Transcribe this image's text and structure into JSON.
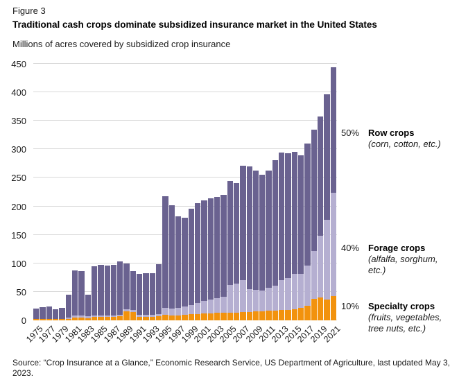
{
  "figure_label": "Figure 3",
  "title": "Traditional cash crops dominate subsidized insurance market in the United States",
  "subtitle": "Millions of acres covered by subsidized crop insurance",
  "source": "Source: “Crop Insurance at a Glance,” Economic Research Service, US Department of Agriculture, last updated May 3, 2023.",
  "annotations": [
    {
      "pct": "50%",
      "label": "Row crops",
      "sub": "(corn, cotton, etc.)"
    },
    {
      "pct": "40%",
      "label": "Forage crops",
      "sub": "(alfalfa, sorghum, etc.)"
    },
    {
      "pct": "10%",
      "label": "Specialty crops",
      "sub": "(fruits, vegetables, tree nuts, etc.)"
    }
  ],
  "chart_data": {
    "type": "bar",
    "stacked": true,
    "title": "Traditional cash crops dominate subsidized insurance market in the United States",
    "ylabel": "Millions of acres covered by subsidized crop insurance",
    "xlabel": "",
    "ylim": [
      0,
      450
    ],
    "ytick_step": 50,
    "grid": true,
    "x": [
      1975,
      1976,
      1977,
      1978,
      1979,
      1980,
      1981,
      1982,
      1983,
      1984,
      1985,
      1986,
      1987,
      1988,
      1989,
      1990,
      1991,
      1992,
      1993,
      1994,
      1995,
      1996,
      1997,
      1998,
      1999,
      2000,
      2001,
      2002,
      2003,
      2004,
      2005,
      2006,
      2007,
      2008,
      2009,
      2010,
      2011,
      2012,
      2013,
      2014,
      2015,
      2016,
      2017,
      2018,
      2019,
      2020,
      2021
    ],
    "xtick_labels": [
      "1975",
      "1977",
      "1979",
      "1981",
      "1983",
      "1985",
      "1987",
      "1989",
      "1991",
      "1993",
      "1995",
      "1997",
      "1999",
      "2001",
      "2003",
      "2005",
      "2007",
      "2009",
      "2011",
      "2013",
      "2015",
      "2017",
      "2019",
      "2021"
    ],
    "series": [
      {
        "name": "Specialty crops",
        "color": "#f2920d",
        "values": [
          2,
          2,
          2,
          2,
          2,
          3,
          5,
          5,
          4,
          6,
          6,
          6,
          6,
          7,
          16,
          15,
          6,
          6,
          6,
          7,
          10,
          9,
          9,
          10,
          11,
          11,
          12,
          12,
          13,
          13,
          14,
          14,
          15,
          15,
          16,
          16,
          17,
          17,
          18,
          18,
          20,
          22,
          26,
          38,
          40,
          36,
          42
        ]
      },
      {
        "name": "Forage crops",
        "color": "#b5afd1",
        "values": [
          1,
          1,
          1,
          1,
          1,
          2,
          3,
          3,
          3,
          3,
          3,
          3,
          3,
          3,
          3,
          3,
          4,
          4,
          4,
          4,
          12,
          12,
          13,
          14,
          16,
          20,
          22,
          24,
          26,
          28,
          48,
          50,
          55,
          40,
          38,
          36,
          40,
          44,
          52,
          56,
          62,
          60,
          70,
          84,
          108,
          140,
          182
        ]
      },
      {
        "name": "Row crops",
        "color": "#6a6290",
        "values": [
          18,
          20,
          21,
          17,
          19,
          40,
          80,
          78,
          38,
          86,
          88,
          87,
          88,
          93,
          81,
          69,
          72,
          73,
          73,
          87,
          196,
          181,
          160,
          156,
          169,
          174,
          176,
          178,
          177,
          179,
          183,
          177,
          201,
          215,
          209,
          203,
          206,
          220,
          224,
          219,
          214,
          207,
          214,
          212,
          210,
          220,
          220
        ]
      }
    ],
    "legend_position": "right-annotations"
  }
}
